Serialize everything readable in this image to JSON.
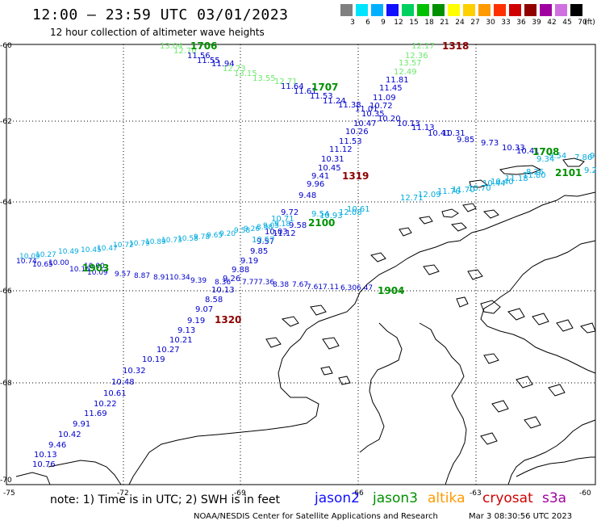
{
  "header": {
    "title": "12:00 – 23:59 UTC 03/01/2023",
    "subtitle": "12 hour collection of altimeter wave heights"
  },
  "legend": {
    "unit": "(ft)",
    "bins": [
      {
        "label": "3",
        "color": "#808080"
      },
      {
        "label": "6",
        "color": "#00e5ff"
      },
      {
        "label": "9",
        "color": "#00b0ff"
      },
      {
        "label": "12",
        "color": "#1010ff"
      },
      {
        "label": "15",
        "color": "#00d060"
      },
      {
        "label": "18",
        "color": "#00c000"
      },
      {
        "label": "21",
        "color": "#009000"
      },
      {
        "label": "24",
        "color": "#ffff00"
      },
      {
        "label": "27",
        "color": "#ffd000"
      },
      {
        "label": "30",
        "color": "#ff9a00"
      },
      {
        "label": "33",
        "color": "#ff3000"
      },
      {
        "label": "36",
        "color": "#d00000"
      },
      {
        "label": "39",
        "color": "#900000"
      },
      {
        "label": "42",
        "color": "#a000a0"
      },
      {
        "label": "45",
        "color": "#d070e0"
      },
      {
        "label": "70",
        "color": "#000000"
      }
    ]
  },
  "axes": {
    "lat_labels": [
      "-60",
      "-62",
      "-64",
      "-66",
      "-68",
      "-70"
    ],
    "lon_labels": [
      "-75",
      "-72",
      "-69",
      "-66",
      "-63",
      "-60"
    ]
  },
  "pass_times": [
    {
      "text": "1706",
      "color": "#009000"
    },
    {
      "text": "1707",
      "color": "#009000"
    },
    {
      "text": "1318",
      "color": "#8b0000"
    },
    {
      "text": "1319",
      "color": "#8b0000"
    },
    {
      "text": "1320",
      "color": "#8b0000"
    },
    {
      "text": "1708",
      "color": "#009000"
    },
    {
      "text": "2101",
      "color": "#009000"
    },
    {
      "text": "2100",
      "color": "#009000"
    },
    {
      "text": "1903",
      "color": "#009000"
    },
    {
      "text": "1904",
      "color": "#009000"
    }
  ],
  "tracks": {
    "jason3_1706_green": {
      "color": "#6ee86e",
      "values": [
        "13.04",
        "12.70",
        "12.73",
        "13.15",
        "13.55",
        "12.71"
      ]
    },
    "jason3_1707_blue": {
      "color": "#0000cc",
      "values": [
        "11.56",
        "11.55",
        "11.94",
        "11.64",
        "11.61",
        "11.53",
        "11.24",
        "11.38",
        "11.01",
        "10.72",
        "10.35",
        "10.20",
        "10.13",
        "11.13",
        "10.41",
        "10.31",
        "9.85",
        "9.73",
        "10.33",
        "10.41"
      ]
    },
    "cryosat_1318_green": {
      "color": "#6ee86e",
      "values": [
        "12.17",
        "12.36",
        "13.57",
        "12.49"
      ]
    },
    "cryosat_1319_blue": {
      "color": "#0000cc",
      "values": [
        "11.81",
        "11.45",
        "11.09",
        "10.47",
        "10.26",
        "11.53",
        "11.12",
        "10.31",
        "10.45",
        "9.41",
        "9.96",
        "9.48",
        "9.72",
        "9.58",
        "10.03",
        "11.12",
        "9.57",
        "9.85",
        "9.19",
        "9.88",
        "9.26",
        "10.13",
        "8.58",
        "9.07",
        "9.19",
        "9.13",
        "10.21",
        "10.27",
        "10.19",
        "10.32",
        "10.48",
        "10.61",
        "10.22",
        "11.69",
        "9.91",
        "10.42",
        "9.46",
        "10.13",
        "10.76"
      ]
    },
    "right_cluster": {
      "color": "#00aadd",
      "values": [
        "9.34",
        "9.54",
        "7.86",
        "8.26",
        "9.2",
        "9"
      ]
    },
    "cryosat_2100_cyan": {
      "color": "#00aadd",
      "values": [
        "10.44",
        "11.18",
        "11.76",
        "10.61",
        "10.93",
        "12.08",
        "12.71",
        "12.09",
        "11.70",
        "10.70",
        "10.40",
        "11.80",
        "10.57",
        "9.54",
        "10.71"
      ]
    },
    "jason2_1903_lowerleft": {
      "color": "#0000cc",
      "values": [
        "10.74",
        "10.65",
        "10.00",
        "10.16",
        "10.00",
        "10.09",
        "9.57",
        "8.87",
        "8.91",
        "10.34",
        "9.39",
        "8.36",
        "7.77",
        "7.36",
        "8.38",
        "7.67",
        "7.61",
        "7.11",
        "6.30",
        "6.47"
      ]
    },
    "upper_mid_track": {
      "color": "#00aadd",
      "values": [
        "10.09",
        "10.27",
        "10.49",
        "10.45",
        "10.47",
        "10.72",
        "10.79",
        "10.89",
        "10.73",
        "10.58",
        "9.78",
        "9.65",
        "9.20",
        "9.58",
        "9.26",
        "8.98",
        "9.05",
        "9.18"
      ]
    }
  },
  "footer": {
    "note": "note: 1) Time is in UTC; 2) SWH is in feet",
    "satellites": [
      {
        "name": "jason2",
        "color": "#1010ff"
      },
      {
        "name": "jason3",
        "color": "#009000"
      },
      {
        "name": "altika",
        "color": "#ff9a00"
      },
      {
        "name": "cryosat",
        "color": "#d00000"
      },
      {
        "name": "s3a",
        "color": "#a000a0"
      }
    ],
    "credit": "NOAA/NESDIS Center for Satellite Applications and Research",
    "timestamp": "Mar  3 08:30:56 UTC 2023"
  }
}
